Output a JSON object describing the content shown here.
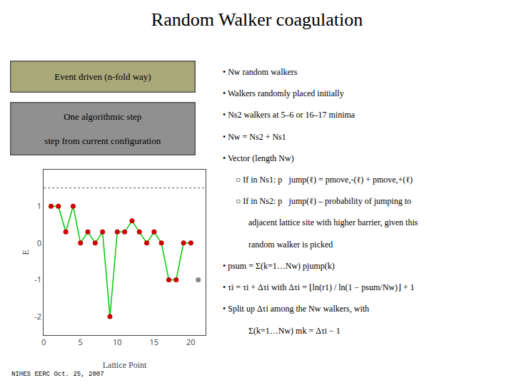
{
  "chart_data": {
    "type": "line",
    "title": "Random Walker coagulation",
    "xlabel": "Lattice Point",
    "ylabel": "E",
    "xlim": [
      0,
      22
    ],
    "ylim": [
      -2.5,
      2.0
    ],
    "xticks": [
      0,
      5,
      10,
      15,
      20
    ],
    "yticks": [
      -2,
      -1,
      0,
      1
    ],
    "grid": false,
    "series": [
      {
        "type": "line",
        "color": "#00cc00",
        "x": [
          1,
          2,
          3,
          4,
          5,
          6,
          7,
          8,
          9,
          10,
          11,
          12,
          13,
          14,
          15,
          16,
          17,
          18,
          19,
          20
        ],
        "values": [
          1,
          1,
          0.3,
          1,
          0,
          0.3,
          0,
          0.3,
          -2,
          0.3,
          0.3,
          0.6,
          0.3,
          0,
          0.3,
          0,
          -1,
          -1,
          0,
          0
        ]
      },
      {
        "type": "scatter",
        "color": "#cc0000",
        "x": [
          1,
          2,
          3,
          4,
          5,
          6,
          7,
          8,
          9,
          10,
          11,
          12,
          13,
          14,
          15,
          16,
          17,
          18,
          19,
          20
        ],
        "values": [
          1,
          1,
          0.3,
          1,
          0,
          0.3,
          0,
          0.3,
          -2,
          0.3,
          0.3,
          0.6,
          0.3,
          0,
          0.3,
          0,
          -1,
          -1,
          0,
          0
        ]
      },
      {
        "type": "scatter",
        "color": "#888888",
        "x": [
          21
        ],
        "values": [
          -1
        ]
      },
      {
        "type": "hline",
        "color": "#888888",
        "line_style": "dotted",
        "values": [
          1.5
        ]
      }
    ],
    "annotations": [
      {
        "text": "Event driven (n-fold way)",
        "color": "#a8a878"
      },
      {
        "text": "One algorithmic step\n\nstep from current configuration",
        "color": "#909090"
      },
      "• Nw random walkers",
      "• Walkers randomly placed initially",
      "• Ns2 walkers at 5–6 or 16–17 minima",
      "• Nw = Ns2 + Ns1",
      "• Vector (length Nw)",
      "○ If in Ns1: p⃗jump(ℓ) = pmove,-(ℓ) + pmove,+(ℓ)",
      "○ If in Ns2: p⃗jump(ℓ) – probability of jumping to",
      "adjacent lattice site with higher barrier, given this",
      "random walker is picked",
      "• psum = Σ(k=1…Nw) pjump(k)",
      "• τi = τi + Δτi with Δτi = ⌊ln(r1) / ln(1 − psum/Nw)⌋ + 1",
      "• Split up Δτi among the Nw walkers, with",
      "Σ(k=1…Nw) mk = Δτi − 1",
      "NIHES EERC Oct. 25, 2007"
    ]
  }
}
